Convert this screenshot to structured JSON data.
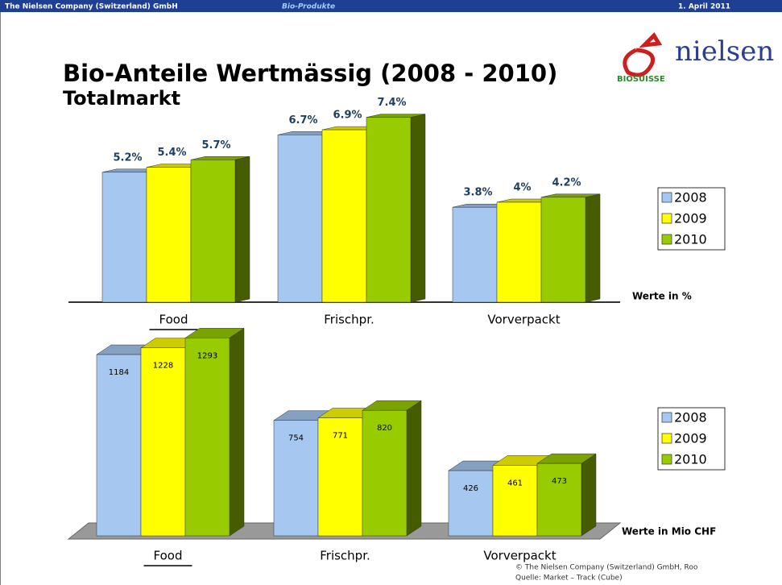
{
  "header": {
    "company": "The Nielsen Company (Switzerland) GmbH",
    "section": "Bio-Produkte",
    "date": "1. April 2011"
  },
  "logos": {
    "nielsen": "nielsen",
    "biosuisse": "BIOSUISSE"
  },
  "title": "Bio-Anteile Wertmässig (2008 - 2010)",
  "subtitle": "Totalmarkt",
  "chart_data": [
    {
      "type": "bar",
      "note": "Werte in %",
      "categories": [
        "Food",
        "Frischpr.",
        "Vorverpackt"
      ],
      "series": [
        {
          "name": "2008",
          "color": "#a6c8f0",
          "values": [
            5.2,
            6.7,
            3.8
          ],
          "value_labels": [
            "5.2%",
            "6.7%",
            "3.8%"
          ]
        },
        {
          "name": "2009",
          "color": "#ffff00",
          "values": [
            5.4,
            6.9,
            4
          ],
          "value_labels": [
            "5.4%",
            "6.9%",
            "4%"
          ]
        },
        {
          "name": "2010",
          "color": "#99cc00",
          "values": [
            5.7,
            7.4,
            4.2
          ],
          "value_labels": [
            "5.7%",
            "7.4%",
            "4.2%"
          ]
        }
      ]
    },
    {
      "type": "bar",
      "note": "Werte in Mio CHF",
      "categories": [
        "Food",
        "Frischpr.",
        "Vorverpackt"
      ],
      "series": [
        {
          "name": "2008",
          "color": "#a6c8f0",
          "values": [
            1184,
            754,
            426
          ]
        },
        {
          "name": "2009",
          "color": "#ffff00",
          "values": [
            1228,
            771,
            461
          ]
        },
        {
          "name": "2010",
          "color": "#99cc00",
          "values": [
            1293,
            820,
            473
          ]
        }
      ]
    }
  ],
  "footer": {
    "copyright": "© The Nielsen Company (Switzerland) GmbH, Roo",
    "source": "Quelle: Market – Track (Cube)"
  }
}
